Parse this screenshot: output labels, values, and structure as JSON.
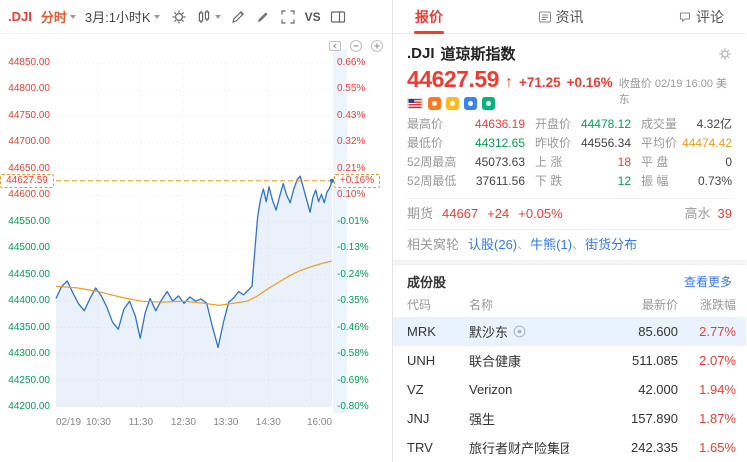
{
  "colors": {
    "red": "#f23b30",
    "green": "#00a152",
    "orange": "#f09a1e",
    "link": "#3478f6",
    "line": "#2e72d2",
    "area": "rgba(46,114,210,0.10)",
    "highlight_row": "#e9f3fd"
  },
  "toolbar": {
    "symbol": ".DJI",
    "mode": "分时",
    "period": "3月:1小时K",
    "vs": "VS"
  },
  "tabs": [
    {
      "label": "报价",
      "active": true
    },
    {
      "label": "资讯",
      "active": false
    },
    {
      "label": "评论",
      "active": false
    }
  ],
  "quote": {
    "code": ".DJI",
    "name": "道琼斯指数",
    "price": "44627.59",
    "arrow": "↑",
    "change": "+71.25",
    "change_pct": "+0.16%",
    "session_note": "收盘价 02/19 16:00 美东",
    "badges": [
      {
        "name": "market-badge-orange",
        "color": "#ff7a1f"
      },
      {
        "name": "market-badge-yellow",
        "color": "#ffb81f"
      },
      {
        "name": "market-badge-blue",
        "color": "#3b82f6"
      },
      {
        "name": "market-badge-green",
        "color": "#00b578"
      }
    ],
    "stats": [
      {
        "label": "最高价",
        "value": "44636.19",
        "color": "red"
      },
      {
        "label": "开盘价",
        "value": "44478.12",
        "color": "green"
      },
      {
        "label": "成交量",
        "value": "4.32亿",
        "color": "dark"
      },
      {
        "label": "最低价",
        "value": "44312.65",
        "color": "green"
      },
      {
        "label": "昨收价",
        "value": "44556.34",
        "color": "dark"
      },
      {
        "label": "平均价",
        "value": "44474.42",
        "color": "orange"
      },
      {
        "label": "52周最高",
        "value": "45073.63",
        "color": "dark"
      },
      {
        "label": "上 涨",
        "value": "18",
        "color": "red"
      },
      {
        "label": "平 盘",
        "value": "0",
        "color": "dark"
      },
      {
        "label": "52周最低",
        "value": "37611.56",
        "color": "dark"
      },
      {
        "label": "下 跌",
        "value": "12",
        "color": "green"
      },
      {
        "label": "振 幅",
        "value": "0.73%",
        "color": "dark"
      }
    ],
    "futures": {
      "label": "期货",
      "price": "44667",
      "change": "+24",
      "pct": "+0.05%",
      "premium_label": "高水",
      "premium_value": "39"
    },
    "warrants": {
      "label": "相关窝轮",
      "links": [
        "认股(26)",
        "牛熊(1)",
        "街货分布"
      ]
    }
  },
  "constituents": {
    "title": "成份股",
    "more": "查看更多",
    "headers": [
      "代码",
      "名称",
      "最新价",
      "涨跌幅"
    ],
    "rows": [
      {
        "code": "MRK",
        "name": "默沙东",
        "price": "85.600",
        "pct": "2.77%",
        "highlight": true,
        "watch": true
      },
      {
        "code": "UNH",
        "name": "联合健康",
        "price": "511.085",
        "pct": "2.07%",
        "highlight": false,
        "watch": false
      },
      {
        "code": "VZ",
        "name": "Verizon",
        "price": "42.000",
        "pct": "1.94%",
        "highlight": false,
        "watch": false
      },
      {
        "code": "JNJ",
        "name": "强生",
        "price": "157.890",
        "pct": "1.87%",
        "highlight": false,
        "watch": false
      },
      {
        "code": "TRV",
        "name": "旅行者财产险集团",
        "price": "242.335",
        "pct": "1.65%",
        "highlight": false,
        "watch": false
      }
    ]
  },
  "chart_data": {
    "type": "line",
    "prev_close": 44556.34,
    "current": 44627.59,
    "current_label": "44627.59",
    "current_pct_label": "+0.16%",
    "ylim": [
      44200,
      44850
    ],
    "t_range": [
      0,
      390
    ],
    "grid_minutes": [
      60,
      120,
      180,
      240,
      300,
      360
    ],
    "axis_ticks": [
      {
        "price": "44850.00",
        "pct": "0.66%"
      },
      {
        "price": "44800.00",
        "pct": "0.55%"
      },
      {
        "price": "44750.00",
        "pct": "0.43%"
      },
      {
        "price": "44700.00",
        "pct": "0.32%"
      },
      {
        "price": "44650.00",
        "pct": "0.21%"
      },
      {
        "price": "44600.00",
        "pct": "0.10%"
      },
      {
        "price": "44550.00",
        "pct": "-0.01%"
      },
      {
        "price": "44500.00",
        "pct": "-0.13%"
      },
      {
        "price": "44450.00",
        "pct": "-0.24%"
      },
      {
        "price": "44400.00",
        "pct": "-0.35%"
      },
      {
        "price": "44350.00",
        "pct": "-0.46%"
      },
      {
        "price": "44300.00",
        "pct": "-0.58%"
      },
      {
        "price": "44250.00",
        "pct": "-0.69%"
      },
      {
        "price": "44200.00",
        "pct": "-0.80%"
      }
    ],
    "x_ticks": [
      {
        "t": 0,
        "label": "02/19"
      },
      {
        "t": 60,
        "label": "10:30"
      },
      {
        "t": 120,
        "label": "11:30"
      },
      {
        "t": 180,
        "label": "12:30"
      },
      {
        "t": 240,
        "label": "13:30"
      },
      {
        "t": 300,
        "label": "14:30"
      },
      {
        "t": 390,
        "label": "16:00"
      }
    ],
    "price_series": [
      [
        0,
        44405
      ],
      [
        8,
        44428
      ],
      [
        16,
        44438
      ],
      [
        24,
        44415
      ],
      [
        32,
        44395
      ],
      [
        40,
        44382
      ],
      [
        48,
        44405
      ],
      [
        56,
        44425
      ],
      [
        64,
        44410
      ],
      [
        72,
        44388
      ],
      [
        80,
        44360
      ],
      [
        88,
        44347
      ],
      [
        96,
        44385
      ],
      [
        104,
        44400
      ],
      [
        112,
        44372
      ],
      [
        119,
        44330
      ],
      [
        126,
        44378
      ],
      [
        133,
        44405
      ],
      [
        141,
        44382
      ],
      [
        149,
        44402
      ],
      [
        157,
        44418
      ],
      [
        165,
        44400
      ],
      [
        173,
        44410
      ],
      [
        181,
        44396
      ],
      [
        189,
        44408
      ],
      [
        197,
        44400
      ],
      [
        205,
        44404
      ],
      [
        213,
        44396
      ],
      [
        221,
        44352
      ],
      [
        229,
        44312.65
      ],
      [
        237,
        44362
      ],
      [
        244,
        44398
      ],
      [
        251,
        44406
      ],
      [
        258,
        44418
      ],
      [
        265,
        44412
      ],
      [
        271,
        44420
      ],
      [
        277,
        44428
      ],
      [
        281,
        44498
      ],
      [
        285,
        44560
      ],
      [
        289,
        44592
      ],
      [
        293,
        44612
      ],
      [
        297,
        44588
      ],
      [
        301,
        44616
      ],
      [
        306,
        44590
      ],
      [
        311,
        44572
      ],
      [
        316,
        44598
      ],
      [
        321,
        44622
      ],
      [
        326,
        44600
      ],
      [
        331,
        44586
      ],
      [
        336,
        44612
      ],
      [
        341,
        44630
      ],
      [
        345,
        44636.19
      ],
      [
        350,
        44612
      ],
      [
        355,
        44588
      ],
      [
        359,
        44568
      ],
      [
        363,
        44596
      ],
      [
        367,
        44610
      ],
      [
        371,
        44588
      ],
      [
        375,
        44602
      ],
      [
        379,
        44586
      ],
      [
        383,
        44606
      ],
      [
        387,
        44615
      ],
      [
        390,
        44627.59
      ]
    ],
    "avg_series": [
      [
        0,
        44428
      ],
      [
        30,
        44425
      ],
      [
        60,
        44418
      ],
      [
        90,
        44408
      ],
      [
        120,
        44400
      ],
      [
        150,
        44398
      ],
      [
        180,
        44400
      ],
      [
        210,
        44396
      ],
      [
        230,
        44392
      ],
      [
        250,
        44396
      ],
      [
        270,
        44400
      ],
      [
        285,
        44410
      ],
      [
        300,
        44424
      ],
      [
        315,
        44436
      ],
      [
        330,
        44448
      ],
      [
        345,
        44458
      ],
      [
        360,
        44465
      ],
      [
        375,
        44471
      ],
      [
        390,
        44476
      ]
    ]
  }
}
